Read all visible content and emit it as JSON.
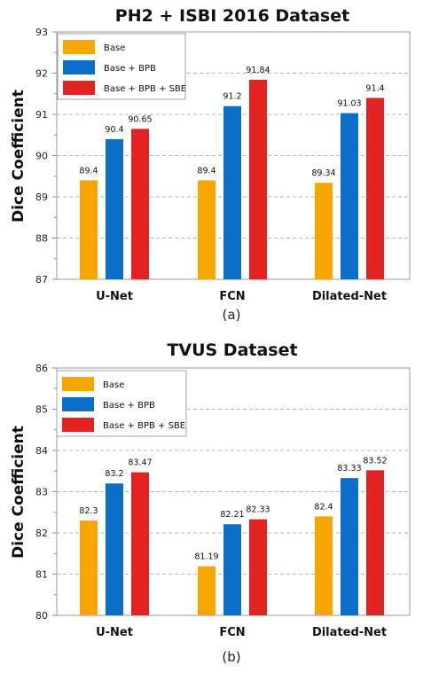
{
  "colors": {
    "base": "#F7A500",
    "bpb": "#0B6FC8",
    "sbe": "#E32222"
  },
  "chart_data": [
    {
      "type": "bar",
      "title": "PH2 + ISBI 2016 Dataset",
      "ylabel": "Dice Coefficient",
      "caption": "(a)",
      "categories": [
        "U-Net",
        "FCN",
        "Dilated-Net"
      ],
      "yticks": [
        "87",
        "88",
        "89",
        "90",
        "91",
        "92",
        "93"
      ],
      "ylim": [
        87,
        93
      ],
      "grid": true,
      "legend_position": "top-left",
      "series": [
        {
          "name": "Base",
          "values": [
            89.4,
            89.4,
            89.34
          ],
          "labels": [
            "89.4",
            "89.4",
            "89.34"
          ]
        },
        {
          "name": "Base + BPB",
          "values": [
            90.4,
            91.2,
            91.03
          ],
          "labels": [
            "90.4",
            "91.2",
            "91.03"
          ]
        },
        {
          "name": "Base + BPB + SBE",
          "values": [
            90.65,
            91.84,
            91.4
          ],
          "labels": [
            "90.65",
            "91.84",
            "91.4"
          ]
        }
      ]
    },
    {
      "type": "bar",
      "title": "TVUS Dataset",
      "ylabel": "Dice Coefficient",
      "caption": "(b)",
      "categories": [
        "U-Net",
        "FCN",
        "Dilated-Net"
      ],
      "yticks": [
        "80",
        "81",
        "82",
        "83",
        "84",
        "85",
        "86"
      ],
      "ylim": [
        80,
        86
      ],
      "grid": true,
      "legend_position": "top-left",
      "series": [
        {
          "name": "Base",
          "values": [
            82.3,
            81.19,
            82.4
          ],
          "labels": [
            "82.3",
            "81.19",
            "82.4"
          ]
        },
        {
          "name": "Base + BPB",
          "values": [
            83.2,
            82.21,
            83.33
          ],
          "labels": [
            "83.2",
            "82.21",
            "83.33"
          ]
        },
        {
          "name": "Base + BPB + SBE",
          "values": [
            83.47,
            82.33,
            83.52
          ],
          "labels": [
            "83.47",
            "82.33",
            "83.52"
          ]
        }
      ]
    }
  ]
}
